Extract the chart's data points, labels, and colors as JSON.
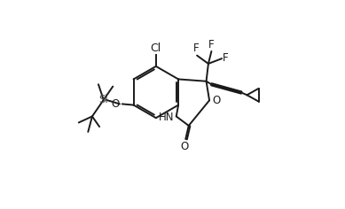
{
  "bg_color": "#ffffff",
  "line_color": "#1a1a1a",
  "line_width": 1.4,
  "font_size": 8.5,
  "figsize": [
    3.89,
    2.36
  ],
  "dpi": 100,
  "xlim": [
    0,
    100
  ],
  "ylim": [
    0,
    100
  ]
}
